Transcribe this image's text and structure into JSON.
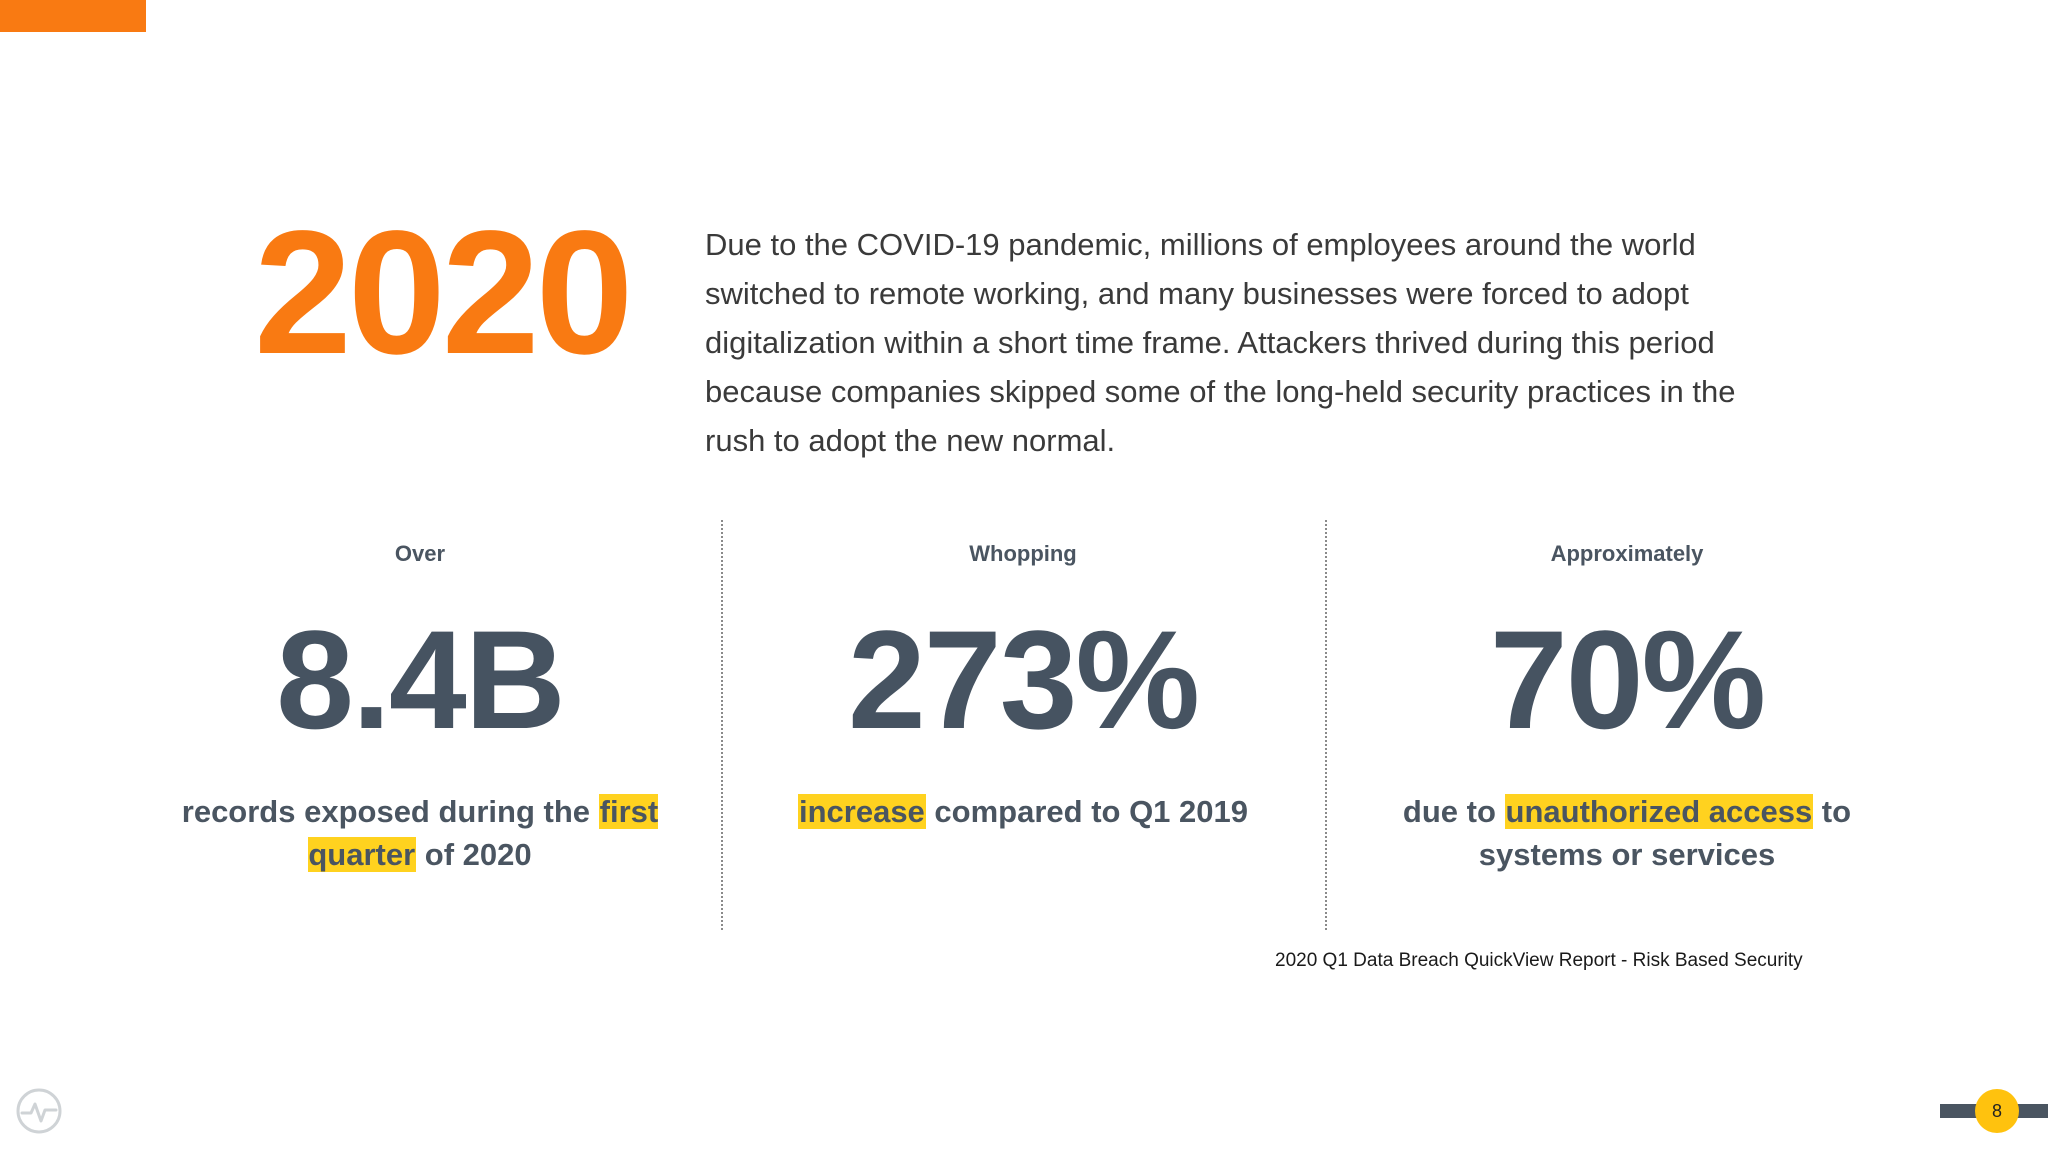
{
  "colors": {
    "accent_orange": "#F97A12",
    "stat_slate": "#465361",
    "highlight_yellow": "#FFD21F",
    "badge_yellow": "#FFC20E"
  },
  "headline": {
    "year": "2020",
    "intro": "Due to the COVID-19 pandemic, millions of employees around the world switched to remote working, and many businesses were forced to adopt digitalization within a short time frame. Attackers thrived during this period because companies skipped some of the long-held security practices in the rush to adopt the new normal."
  },
  "stats": [
    {
      "qualifier": "Over",
      "value": "8.4B",
      "desc_pre": "records exposed during the ",
      "desc_highlight": "first quarter",
      "desc_post": " of 2020"
    },
    {
      "qualifier": "Whopping",
      "value": "273%",
      "desc_pre": "",
      "desc_highlight": "increase",
      "desc_post": " compared to Q1 2019"
    },
    {
      "qualifier": "Approximately",
      "value": "70%",
      "desc_pre": "due to ",
      "desc_highlight": "unauthorized access",
      "desc_post": " to systems or services"
    }
  ],
  "source": "2020 Q1 Data Breach QuickView Report - Risk Based Security",
  "footer": {
    "page_number": "8",
    "logo_icon": "pulse-circle-icon"
  }
}
